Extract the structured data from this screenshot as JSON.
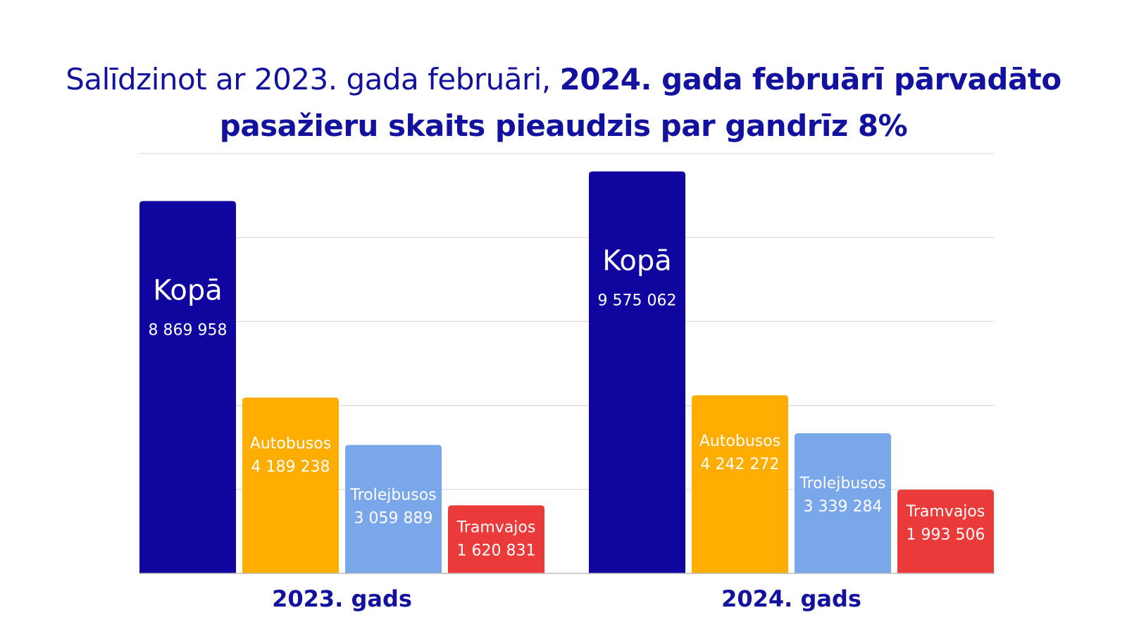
{
  "title": {
    "normal": "Salīdzinot ar 2023. gada februāri, ",
    "bold_line1": "2024. gada februārī pārvadāto",
    "bold_line2": "pasažieru skaits pieaudzis par gandrīz 8%"
  },
  "chart_data": {
    "type": "bar",
    "title": "Salīdzinot ar 2023. gada februāri, 2024. gada februārī pārvadāto pasažieru skaits pieaudzis par gandrīz 8%",
    "categories": [
      "2023. gads",
      "2024. gads"
    ],
    "series": [
      {
        "name": "Kopā",
        "color": "#10069f",
        "values": [
          8869958,
          9575062
        ],
        "labels": [
          "8 869 958",
          "9 575 062"
        ]
      },
      {
        "name": "Autobusos",
        "color": "#ffad00",
        "values": [
          4189238,
          4242272
        ],
        "labels": [
          "4 189 238",
          "4 242 272"
        ]
      },
      {
        "name": "Trolejbusos",
        "color": "#7aa6ea",
        "values": [
          3059889,
          3339284
        ],
        "labels": [
          "3 059 889",
          "3 339 284"
        ]
      },
      {
        "name": "Tramvajos",
        "color": "#ea3a3a",
        "values": [
          1620831,
          1993506
        ],
        "labels": [
          "1 620 831",
          "1 993 506"
        ]
      }
    ],
    "ylim": [
      0,
      10000000
    ],
    "y_gridlines": [
      2000000,
      4000000,
      6000000,
      8000000,
      10000000
    ],
    "grid": true,
    "legend": "none",
    "xlabel": "",
    "ylabel": ""
  }
}
